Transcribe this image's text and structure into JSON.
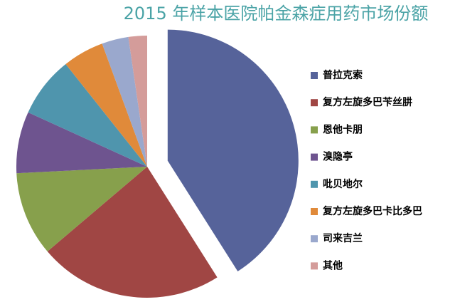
{
  "chart_data": {
    "type": "pie",
    "title": "2015 年样本医院帕金森症用药市场份额",
    "categories": [
      "普拉克索",
      "复方左旋多巴苄丝肼",
      "恩他卡朋",
      "溴隐亭",
      "吡贝地尔",
      "复方左旋多巴卡比多巴",
      "司来吉兰",
      "其他"
    ],
    "values": [
      41,
      22.8,
      10.4,
      7.6,
      7.5,
      5.1,
      3.3,
      2.3
    ],
    "colors": [
      "#56639a",
      "#a04644",
      "#87a04c",
      "#6e548f",
      "#4f95ad",
      "#e08a3a",
      "#9aa8cd",
      "#d49c9a"
    ],
    "legend": "right"
  }
}
